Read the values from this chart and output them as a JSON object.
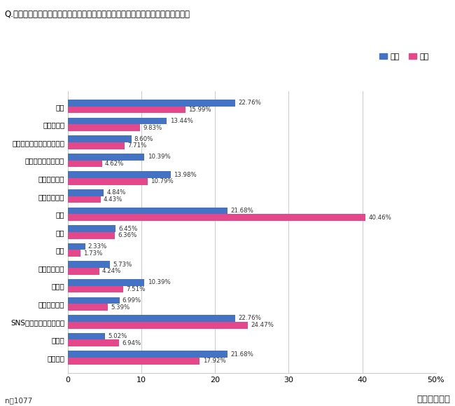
{
  "title": "Q.減った通勤時間の代わりにしていることをお知らせください。　（複数回答可）",
  "categories": [
    "仕事",
    "資格の勉強",
    "英語（その他言語）の勉強",
    "読書（ビジネス書）",
    "読書（小説）",
    "読書（漫画）",
    "家事",
    "育児",
    "介護",
    "ガーデニング",
    "ゲーム",
    "ワークアウト",
    "SNS・ネットサーフィン",
    "その他",
    "特になし"
  ],
  "male_values": [
    22.76,
    13.44,
    8.6,
    10.39,
    13.98,
    4.84,
    21.68,
    6.45,
    2.33,
    5.73,
    10.39,
    6.99,
    22.76,
    5.02,
    21.68
  ],
  "female_values": [
    15.99,
    9.83,
    7.71,
    4.62,
    10.79,
    4.43,
    40.46,
    6.36,
    1.73,
    4.24,
    7.51,
    5.39,
    24.47,
    6.94,
    17.92
  ],
  "male_color": "#4472C4",
  "female_color": "#E4488A",
  "xlim": [
    0,
    50
  ],
  "xticks": [
    0,
    10,
    20,
    30,
    40,
    50
  ],
  "xticklabels": [
    "0",
    "10",
    "20",
    "30",
    "40",
    "50%"
  ],
  "legend_male": "男性",
  "legend_female": "女性",
  "footnote": "n＝1077",
  "watermark": "テレリモ総研",
  "bar_height": 0.38,
  "background_color": "#ffffff"
}
